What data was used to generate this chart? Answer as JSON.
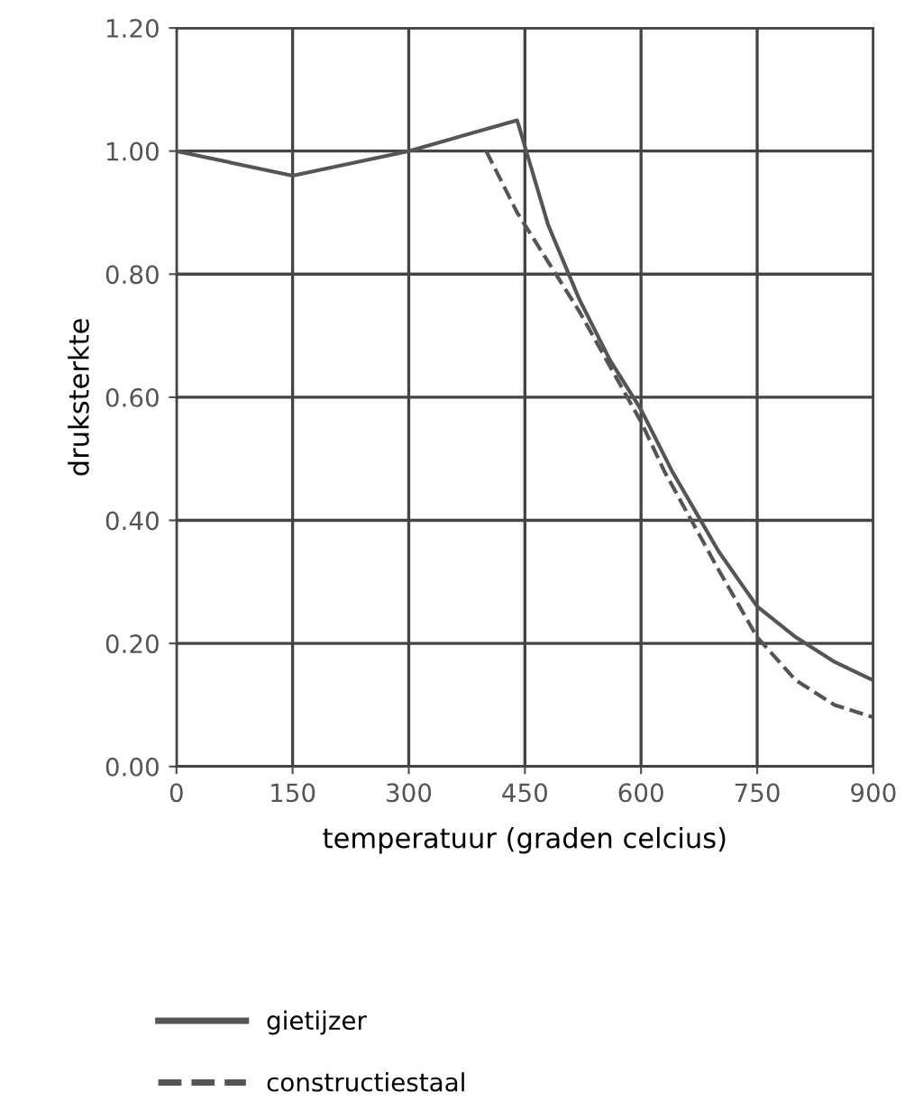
{
  "chart_data": {
    "type": "line",
    "xlabel": "temperatuur (graden celcius)",
    "ylabel": "druksterkte",
    "xlim": [
      0,
      900
    ],
    "xticks": [
      0,
      150,
      300,
      450,
      600,
      750,
      900
    ],
    "ylim": [
      0,
      1.2
    ],
    "yticks": [
      {
        "value": 0,
        "label": "0.00"
      },
      {
        "value": 0.2,
        "label": "0.20"
      },
      {
        "value": 0.4,
        "label": "0.40"
      },
      {
        "value": 0.6,
        "label": "0.60"
      },
      {
        "value": 0.8,
        "label": "0.80"
      },
      {
        "value": 1.0,
        "label": "1.00"
      },
      {
        "value": 1.2,
        "label": "1.20"
      }
    ],
    "grid": true,
    "legend": "bottom",
    "marker": "none",
    "series": [
      {
        "name": "gietijzer",
        "color": "#555555",
        "line_style": "solid",
        "x": [
          0,
          150,
          300,
          440,
          480,
          520,
          560,
          600,
          640,
          700,
          750,
          800,
          850,
          900
        ],
        "values": [
          1.0,
          0.96,
          1.0,
          1.05,
          0.88,
          0.76,
          0.66,
          0.58,
          0.48,
          0.35,
          0.26,
          0.21,
          0.17,
          0.14
        ]
      },
      {
        "name": "constructiestaal",
        "color": "#555555",
        "line_style": "dashed",
        "x": [
          400,
          440,
          480,
          520,
          560,
          600,
          630,
          700,
          750,
          800,
          850,
          900
        ],
        "values": [
          1.0,
          0.9,
          0.82,
          0.74,
          0.65,
          0.56,
          0.48,
          0.32,
          0.21,
          0.14,
          0.1,
          0.08
        ]
      }
    ]
  }
}
